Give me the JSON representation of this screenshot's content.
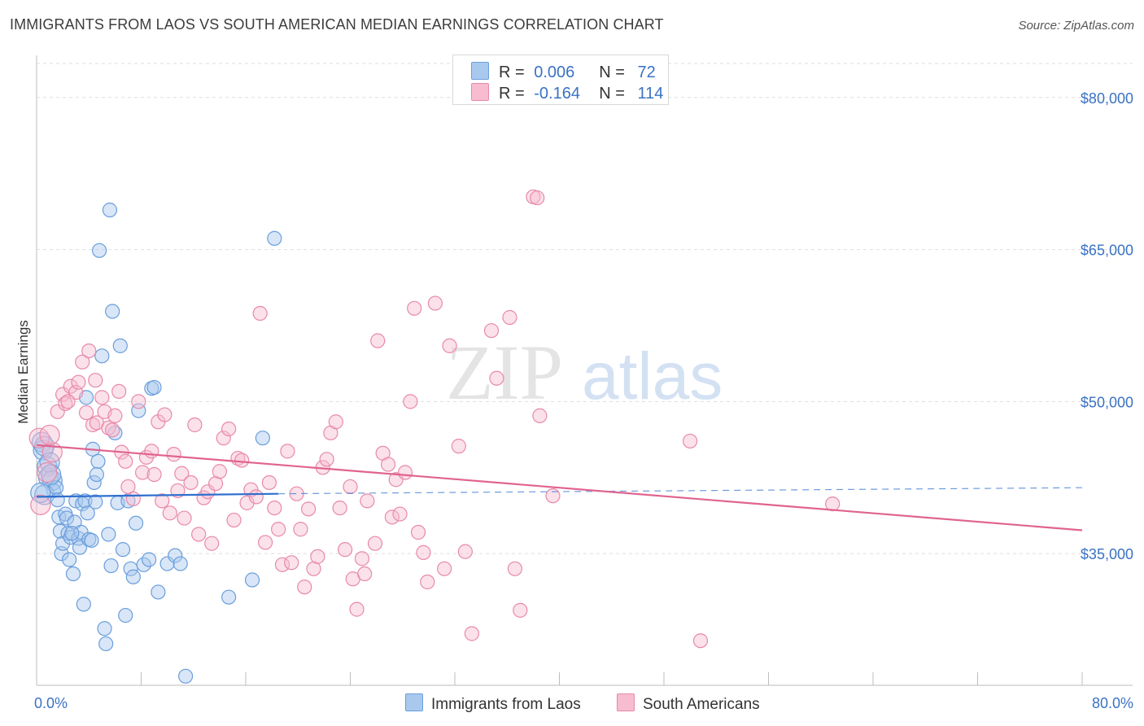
{
  "title": "IMMIGRANTS FROM LAOS VS SOUTH AMERICAN MEDIAN EARNINGS CORRELATION CHART",
  "source": "Source: ZipAtlas.com",
  "watermark": {
    "zip": "ZIP",
    "atlas": "atlas"
  },
  "legend": {
    "r_label": "R =",
    "n_label": "N =",
    "rows": [
      {
        "r": "0.006",
        "n": "72",
        "color": "#a9c8ee",
        "border": "#6a9edc"
      },
      {
        "r": "-0.164",
        "n": "114",
        "color": "#f7bcd0",
        "border": "#e889aa"
      }
    ]
  },
  "bottom_legend": [
    {
      "label": "Immigrants from Laos",
      "color": "#a9c8ee",
      "border": "#6a9edc"
    },
    {
      "label": "South Americans",
      "color": "#f7bcd0",
      "border": "#e889aa"
    }
  ],
  "chart_data": {
    "type": "scatter",
    "xlabel": "",
    "ylabel": "Median Earnings",
    "xlim": [
      0,
      80
    ],
    "ylim": [
      22000,
      84000
    ],
    "x_tick_labels": [
      "0.0%",
      "80.0%"
    ],
    "y_ticks": [
      35000,
      50000,
      65000,
      80000
    ],
    "y_tick_labels": [
      "$35,000",
      "$50,000",
      "$65,000",
      "$80,000"
    ],
    "grid": true,
    "series": [
      {
        "name": "Immigrants from Laos",
        "color": "#6a9edc",
        "fill": "#a9c8ee",
        "trend": {
          "x": [
            0,
            18.5
          ],
          "y": [
            40600,
            40900
          ],
          "dashed_to": [
            80,
            41500
          ],
          "color": "#2f6fce"
        },
        "points": [
          [
            0.4,
            46.0
          ],
          [
            0.5,
            45.2
          ],
          [
            0.6,
            45.6
          ],
          [
            0.8,
            43.6
          ],
          [
            0.9,
            42.5
          ],
          [
            1.0,
            44.0
          ],
          [
            1.2,
            42.2
          ],
          [
            1.3,
            41.2
          ],
          [
            0.6,
            40.8
          ],
          [
            1.5,
            41.5
          ],
          [
            1.6,
            40.3
          ],
          [
            1.7,
            38.6
          ],
          [
            1.8,
            37.2
          ],
          [
            1.9,
            35.0
          ],
          [
            2.0,
            36.0
          ],
          [
            2.2,
            38.9
          ],
          [
            2.3,
            38.5
          ],
          [
            2.4,
            37.0
          ],
          [
            2.5,
            34.4
          ],
          [
            2.6,
            36.6
          ],
          [
            2.8,
            33.0
          ],
          [
            2.9,
            38.1
          ],
          [
            3.0,
            40.2
          ],
          [
            3.2,
            36.5
          ],
          [
            3.3,
            35.6
          ],
          [
            3.4,
            37.1
          ],
          [
            3.5,
            39.9
          ],
          [
            3.6,
            30.0
          ],
          [
            3.7,
            40.2
          ],
          [
            3.8,
            50.4
          ],
          [
            4.0,
            36.4
          ],
          [
            4.2,
            36.3
          ],
          [
            4.3,
            45.3
          ],
          [
            4.4,
            42.0
          ],
          [
            4.5,
            40.1
          ],
          [
            4.6,
            42.8
          ],
          [
            4.7,
            44.1
          ],
          [
            4.8,
            64.9
          ],
          [
            5.0,
            54.5
          ],
          [
            5.2,
            27.6
          ],
          [
            5.3,
            26.1
          ],
          [
            5.5,
            36.9
          ],
          [
            5.6,
            68.9
          ],
          [
            5.7,
            33.8
          ],
          [
            5.8,
            58.9
          ],
          [
            6.0,
            46.9
          ],
          [
            6.2,
            40.0
          ],
          [
            6.4,
            55.5
          ],
          [
            6.6,
            35.4
          ],
          [
            6.8,
            28.9
          ],
          [
            7.0,
            40.2
          ],
          [
            7.2,
            33.5
          ],
          [
            7.4,
            32.7
          ],
          [
            7.6,
            38.0
          ],
          [
            7.8,
            49.1
          ],
          [
            8.2,
            33.9
          ],
          [
            8.6,
            34.4
          ],
          [
            8.8,
            51.3
          ],
          [
            9.0,
            51.4
          ],
          [
            9.3,
            31.2
          ],
          [
            10.0,
            34.0
          ],
          [
            10.6,
            34.8
          ],
          [
            11.0,
            34.0
          ],
          [
            11.4,
            22.9
          ],
          [
            14.7,
            30.7
          ],
          [
            16.5,
            32.4
          ],
          [
            17.3,
            46.4
          ],
          [
            18.2,
            66.1
          ],
          [
            0.3,
            41.0
          ],
          [
            1.1,
            42.8
          ],
          [
            2.7,
            37.0
          ],
          [
            3.9,
            39.0
          ]
        ]
      },
      {
        "name": "South Americans",
        "color": "#e889aa",
        "fill": "#f7bcd0",
        "trend": {
          "x": [
            0,
            80
          ],
          "y": [
            45700,
            37300
          ],
          "color": "#e0648f"
        },
        "points": [
          [
            0.2,
            46.4
          ],
          [
            0.3,
            39.8
          ],
          [
            0.8,
            43.0
          ],
          [
            1.2,
            45.0
          ],
          [
            1.6,
            49.0
          ],
          [
            2.0,
            50.7
          ],
          [
            2.2,
            49.8
          ],
          [
            2.6,
            51.5
          ],
          [
            3.0,
            50.9
          ],
          [
            3.2,
            51.9
          ],
          [
            3.5,
            53.9
          ],
          [
            3.8,
            48.9
          ],
          [
            4.0,
            55.0
          ],
          [
            4.3,
            47.7
          ],
          [
            4.6,
            47.9
          ],
          [
            5.0,
            50.4
          ],
          [
            5.2,
            49.0
          ],
          [
            5.5,
            47.4
          ],
          [
            5.8,
            47.2
          ],
          [
            6.0,
            48.6
          ],
          [
            6.3,
            51.0
          ],
          [
            6.5,
            45.0
          ],
          [
            6.8,
            44.1
          ],
          [
            7.0,
            41.6
          ],
          [
            7.4,
            40.4
          ],
          [
            7.8,
            50.0
          ],
          [
            8.1,
            43.0
          ],
          [
            8.4,
            44.5
          ],
          [
            8.8,
            45.1
          ],
          [
            9.0,
            42.8
          ],
          [
            9.3,
            48.0
          ],
          [
            9.6,
            40.2
          ],
          [
            9.8,
            48.7
          ],
          [
            10.2,
            39.0
          ],
          [
            10.5,
            44.8
          ],
          [
            10.8,
            41.2
          ],
          [
            11.1,
            42.9
          ],
          [
            11.3,
            38.5
          ],
          [
            11.8,
            42.0
          ],
          [
            12.1,
            47.7
          ],
          [
            12.4,
            36.9
          ],
          [
            12.8,
            40.5
          ],
          [
            13.1,
            41.1
          ],
          [
            13.4,
            36.0
          ],
          [
            13.7,
            41.9
          ],
          [
            14.0,
            43.1
          ],
          [
            14.3,
            46.4
          ],
          [
            14.7,
            47.3
          ],
          [
            15.1,
            38.3
          ],
          [
            15.4,
            44.4
          ],
          [
            15.7,
            44.2
          ],
          [
            16.1,
            40.0
          ],
          [
            16.4,
            41.3
          ],
          [
            16.8,
            40.6
          ],
          [
            17.1,
            58.7
          ],
          [
            17.5,
            36.1
          ],
          [
            17.8,
            42.0
          ],
          [
            18.2,
            39.5
          ],
          [
            18.5,
            37.4
          ],
          [
            18.8,
            33.9
          ],
          [
            19.2,
            45.1
          ],
          [
            19.5,
            34.1
          ],
          [
            19.9,
            40.9
          ],
          [
            20.2,
            37.4
          ],
          [
            20.5,
            31.7
          ],
          [
            20.8,
            39.4
          ],
          [
            21.2,
            33.5
          ],
          [
            21.5,
            34.7
          ],
          [
            21.9,
            43.5
          ],
          [
            22.2,
            44.3
          ],
          [
            22.5,
            46.9
          ],
          [
            22.9,
            48.0
          ],
          [
            23.2,
            39.5
          ],
          [
            23.6,
            35.4
          ],
          [
            24.0,
            41.6
          ],
          [
            24.2,
            32.5
          ],
          [
            24.5,
            29.5
          ],
          [
            24.9,
            34.5
          ],
          [
            25.1,
            33.0
          ],
          [
            25.3,
            40.2
          ],
          [
            25.9,
            36.0
          ],
          [
            26.1,
            56.0
          ],
          [
            26.5,
            44.9
          ],
          [
            26.9,
            43.8
          ],
          [
            27.2,
            38.6
          ],
          [
            27.5,
            42.3
          ],
          [
            27.8,
            38.9
          ],
          [
            28.2,
            43.0
          ],
          [
            28.6,
            50.0
          ],
          [
            28.9,
            59.2
          ],
          [
            29.2,
            37.1
          ],
          [
            29.6,
            35.1
          ],
          [
            29.9,
            32.2
          ],
          [
            30.5,
            59.7
          ],
          [
            31.2,
            33.5
          ],
          [
            31.6,
            55.5
          ],
          [
            32.3,
            45.6
          ],
          [
            32.8,
            35.2
          ],
          [
            33.3,
            27.1
          ],
          [
            34.8,
            57.0
          ],
          [
            35.2,
            52.3
          ],
          [
            36.2,
            58.3
          ],
          [
            36.6,
            33.5
          ],
          [
            37.0,
            29.4
          ],
          [
            38.0,
            70.2
          ],
          [
            38.3,
            70.1
          ],
          [
            38.5,
            48.6
          ],
          [
            39.5,
            40.7
          ],
          [
            50.0,
            46.1
          ],
          [
            50.8,
            26.4
          ],
          [
            60.9,
            39.9
          ],
          [
            1.0,
            46.7
          ],
          [
            2.4,
            50.0
          ],
          [
            4.5,
            52.1
          ]
        ]
      }
    ]
  }
}
